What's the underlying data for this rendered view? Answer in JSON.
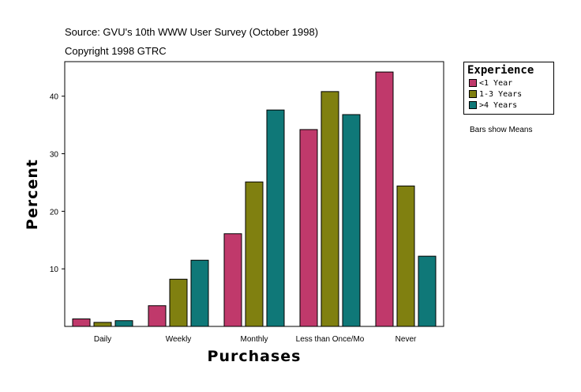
{
  "header": {
    "source": "Source: GVU's 10th WWW User Survey (October 1998)",
    "copyright": "Copyright 1998 GTRC"
  },
  "legend": {
    "title": "Experience",
    "items": [
      {
        "label": "<1 Year",
        "color": "#c0396b"
      },
      {
        "label": "1-3 Years",
        "color": "#808010"
      },
      {
        "label": ">4 Years",
        "color": "#0f7878"
      }
    ]
  },
  "note": "Bars show Means",
  "chart_data": {
    "type": "bar",
    "title": "",
    "xlabel": "Purchases",
    "ylabel": "Percent",
    "categories": [
      "Daily",
      "Weekly",
      "Monthly",
      "Less than Once/Mo",
      "Never"
    ],
    "series": [
      {
        "name": "<1 Year",
        "color": "#c0396b",
        "values": [
          1.3,
          3.6,
          16.1,
          34.2,
          44.2
        ]
      },
      {
        "name": "1-3 Years",
        "color": "#808010",
        "values": [
          0.7,
          8.2,
          25.1,
          40.8,
          24.4
        ]
      },
      {
        "name": ">4 Years",
        "color": "#0f7878",
        "values": [
          1.0,
          11.5,
          37.6,
          36.8,
          12.2
        ]
      }
    ],
    "yticks": [
      10,
      20,
      30,
      40
    ],
    "ylim": [
      0,
      46
    ],
    "grid": false
  }
}
